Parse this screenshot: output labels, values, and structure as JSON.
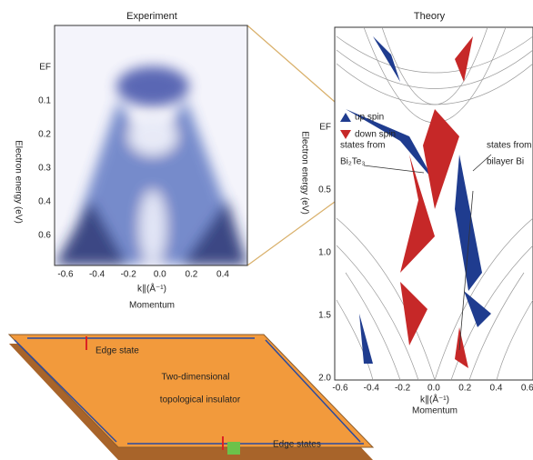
{
  "experiment": {
    "title": "Experiment",
    "y_label": "Electron energy (eV)",
    "y_ticks": [
      "EF",
      "0.1",
      "0.2",
      "0.3",
      "0.4",
      "0.6"
    ],
    "x_ticks": [
      "-0.6",
      "-0.4",
      "-0.2",
      "0.0",
      "0.2",
      "0.4"
    ],
    "x_label": "k∥(Å⁻¹)",
    "x_caption": "Momentum"
  },
  "theory": {
    "title": "Theory",
    "y_label": "Electron energy (eV)",
    "y_ticks": [
      "EF",
      "0.5",
      "1.0",
      "1.5",
      "2.0"
    ],
    "x_ticks": [
      "-0.6",
      "-0.4",
      "-0.2",
      "0.0",
      "0.2",
      "0.4",
      "0.6"
    ],
    "x_label": "k∥(Å⁻¹)",
    "x_caption": "Momentum",
    "legend": [
      "up spin",
      "down spin"
    ],
    "annotations": [
      "states from",
      "Bi₂Te₃",
      "states from",
      "bilayer Bi"
    ]
  },
  "diagram": {
    "labels": [
      "Edge state",
      "Two-dimensional",
      "topological insulator",
      "Edge states"
    ]
  }
}
